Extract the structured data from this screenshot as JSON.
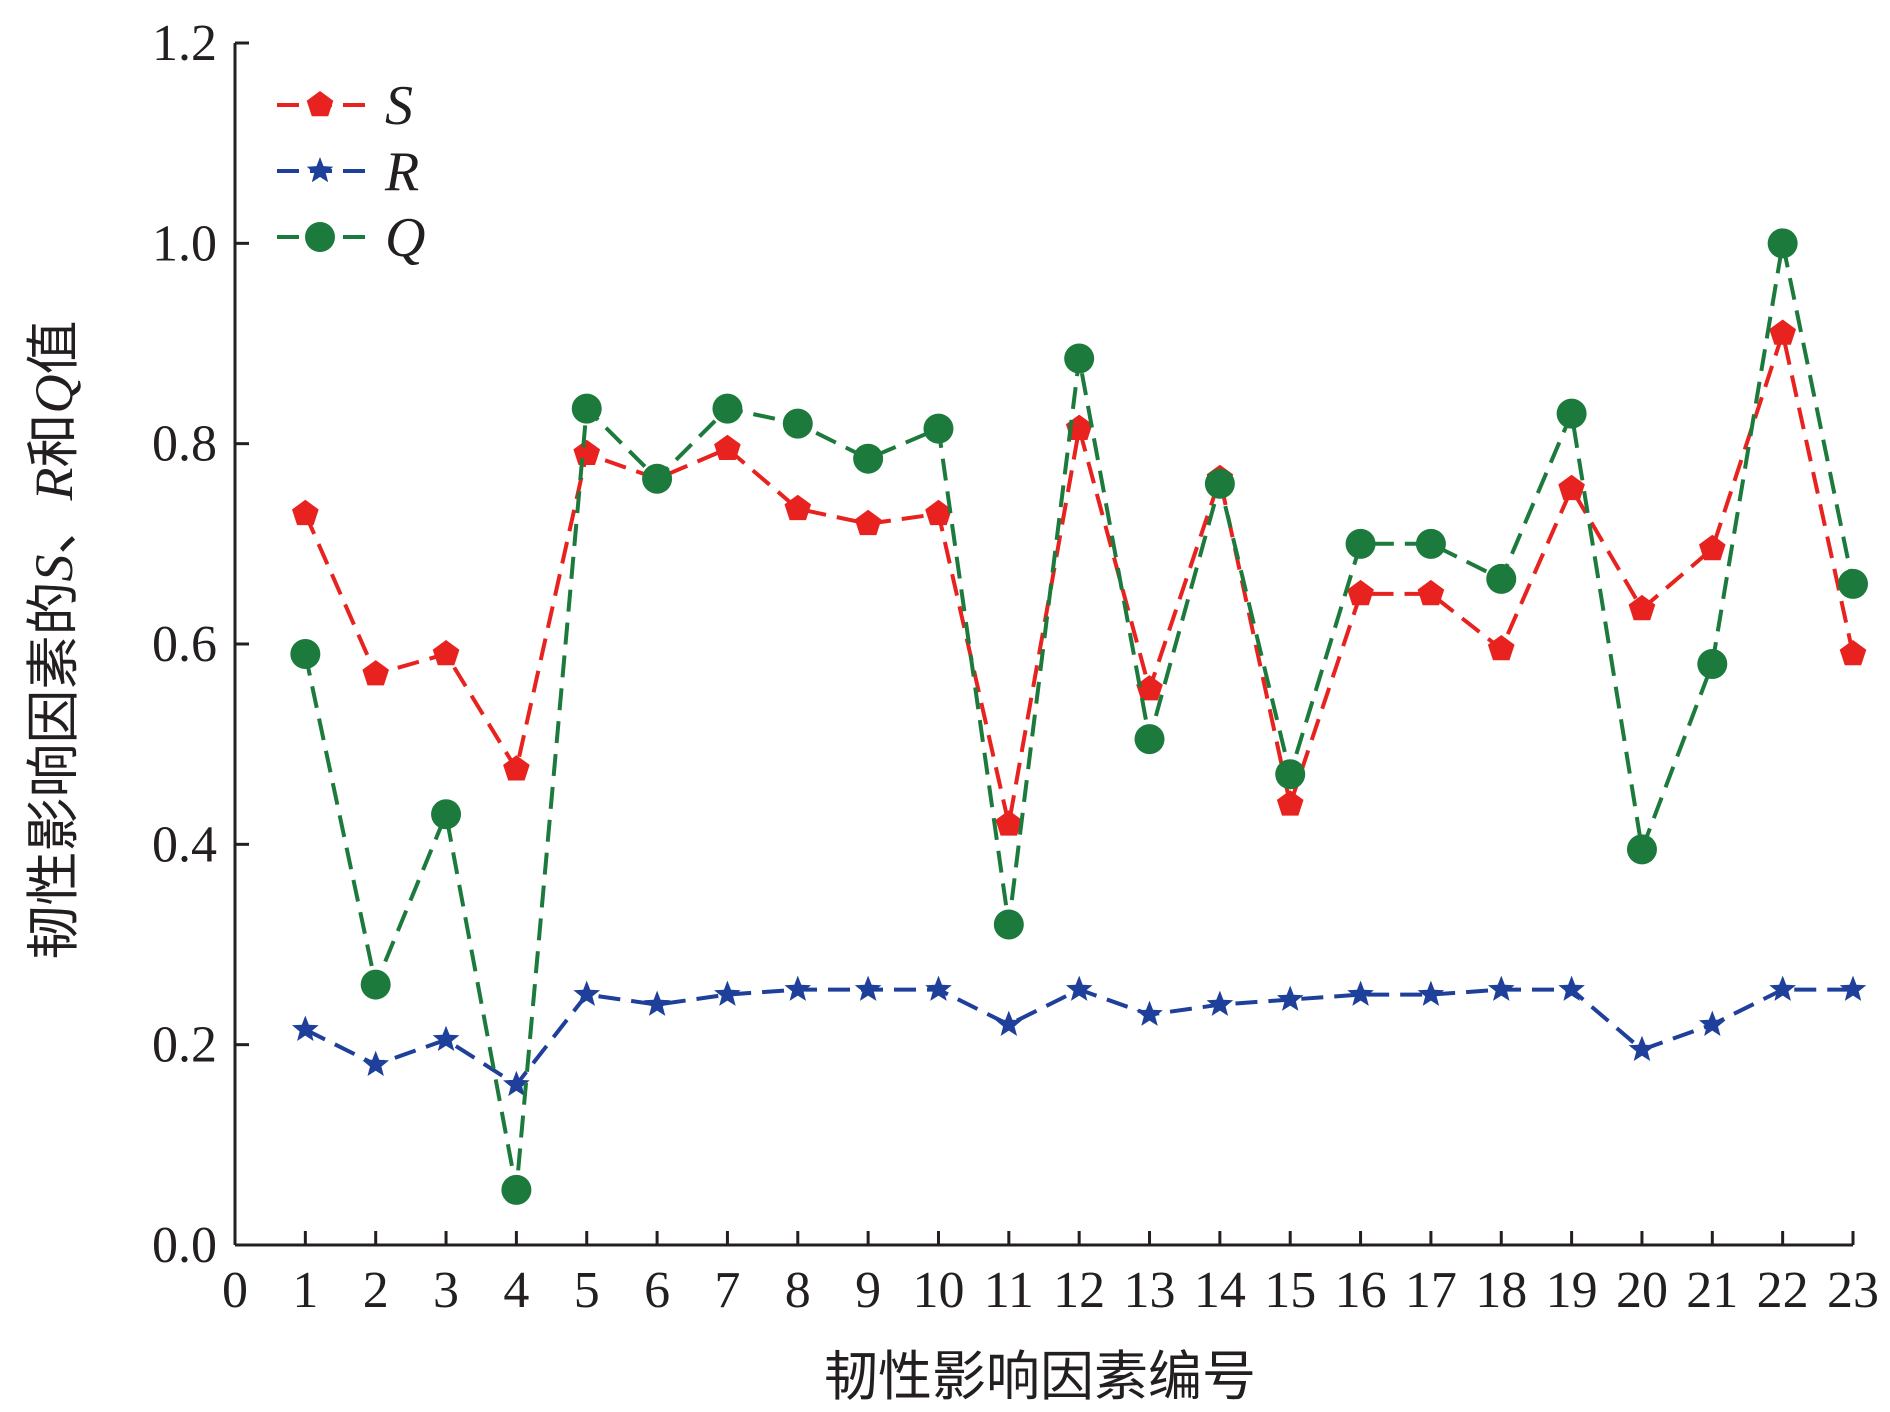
{
  "chart_data": {
    "type": "line",
    "xlabel": "韧性影响因素编号",
    "ylabel_parts": [
      "韧性影响因素的",
      "S",
      "、",
      "R",
      "和",
      "Q",
      "值"
    ],
    "xlim": [
      0,
      23
    ],
    "ylim": [
      0,
      1.2
    ],
    "xticks": [
      "0",
      "1",
      "2",
      "3",
      "4",
      "5",
      "6",
      "7",
      "8",
      "9",
      "10",
      "11",
      "12",
      "13",
      "14",
      "15",
      "16",
      "17",
      "18",
      "19",
      "20",
      "21",
      "22",
      "23"
    ],
    "yticks": [
      "0.0",
      "0.2",
      "0.4",
      "0.6",
      "0.8",
      "1.0",
      "1.2"
    ],
    "x": [
      1,
      2,
      3,
      4,
      5,
      6,
      7,
      8,
      9,
      10,
      11,
      12,
      13,
      14,
      15,
      16,
      17,
      18,
      19,
      20,
      21,
      22,
      23
    ],
    "legend_position": "top-left",
    "grid": false,
    "series": [
      {
        "name": "S",
        "color": "#e8231f",
        "marker": "pentagon",
        "values": [
          0.73,
          0.57,
          0.59,
          0.475,
          0.79,
          0.765,
          0.795,
          0.735,
          0.72,
          0.73,
          0.42,
          0.815,
          0.555,
          0.765,
          0.44,
          0.65,
          0.65,
          0.595,
          0.755,
          0.635,
          0.695,
          0.91,
          0.59
        ]
      },
      {
        "name": "R",
        "color": "#1e3f9a",
        "marker": "star",
        "values": [
          0.215,
          0.18,
          0.205,
          0.16,
          0.25,
          0.24,
          0.25,
          0.255,
          0.255,
          0.255,
          0.22,
          0.255,
          0.23,
          0.24,
          0.245,
          0.25,
          0.25,
          0.255,
          0.255,
          0.195,
          0.22,
          0.255,
          0.255
        ]
      },
      {
        "name": "Q",
        "color": "#1c7a3c",
        "marker": "circle",
        "values": [
          0.59,
          0.26,
          0.43,
          0.055,
          0.835,
          0.765,
          0.835,
          0.82,
          0.785,
          0.815,
          0.32,
          0.885,
          0.505,
          0.76,
          0.47,
          0.7,
          0.7,
          0.665,
          0.83,
          0.395,
          0.58,
          1.0,
          0.66
        ]
      }
    ]
  }
}
